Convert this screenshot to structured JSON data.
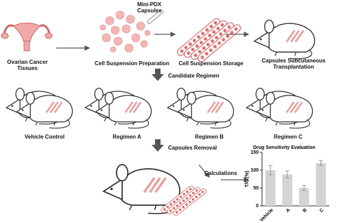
{
  "steps": {
    "tissue": "Ovarian Cancer Tissues",
    "preparation": "Cell Suspension Preparation",
    "capsules": "Mini-PDX Capsules",
    "storage": "Cell Suspension Storage",
    "transplantation": "Capsules Subcutaneous Transplantation",
    "regimen": "Candidate Regimen",
    "removal": "Capsules Removal",
    "calculations": "Calculations"
  },
  "groups": [
    "Vehicle Control",
    "Regimen A",
    "Regimen B",
    "Regimen C"
  ],
  "inset_chart": {
    "type": "bar",
    "title": "Drug Sensitivity Evaluation",
    "y_label": "T/C (%)",
    "categories": [
      "Vehicle",
      "A",
      "B",
      "C"
    ],
    "values": [
      100,
      88,
      50,
      120
    ],
    "errors": [
      13,
      10,
      7,
      7
    ],
    "color": "#d4d4d4",
    "ylim": [
      0,
      150
    ],
    "yticks": [
      0,
      50,
      100,
      150
    ]
  }
}
